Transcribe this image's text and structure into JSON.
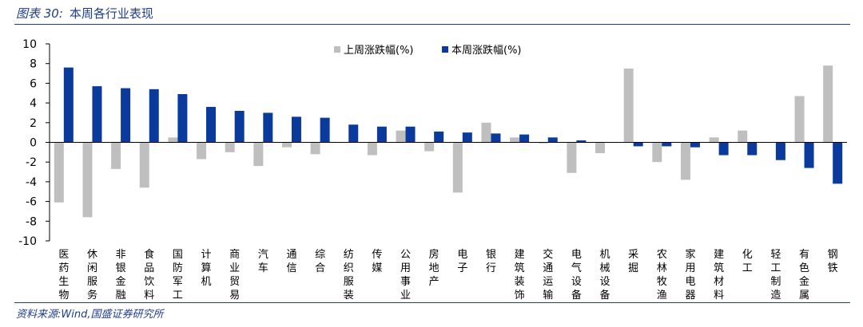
{
  "caption": {
    "label": "图表 30:",
    "title": "本周各行业表现"
  },
  "source": "资料来源:Wind,国盛证券研究所",
  "colors": {
    "last_week": "#bfbfbf",
    "this_week": "#0a3a9b",
    "frame": "#1f3d8a"
  },
  "chart_data": {
    "type": "bar",
    "categories": [
      "医药生物",
      "休闲服务",
      "非银金融",
      "食品饮料",
      "国防军工",
      "计算机",
      "商业贸易",
      "汽车",
      "通信",
      "综合",
      "纺织服装",
      "传媒",
      "公用事业",
      "房地产",
      "电子",
      "银行",
      "建筑装饰",
      "交通运输",
      "电气设备",
      "机械设备",
      "采掘",
      "农林牧渔",
      "家用电器",
      "建筑材料",
      "化工",
      "轻工制造",
      "有色金属",
      "钢铁"
    ],
    "series": [
      {
        "name": "上周涨跌幅(%)",
        "values": [
          -6.1,
          -7.6,
          -2.7,
          -4.6,
          0.5,
          -1.7,
          -1.0,
          -2.4,
          -0.5,
          -1.2,
          0.0,
          -1.3,
          1.2,
          -0.9,
          -5.1,
          2.0,
          0.5,
          -0.1,
          -3.1,
          -1.1,
          7.5,
          -2.0,
          -3.8,
          0.5,
          1.2,
          0.0,
          4.7,
          7.8
        ]
      },
      {
        "name": "本周涨跌幅(%)",
        "values": [
          7.6,
          5.7,
          5.5,
          5.4,
          4.9,
          3.6,
          3.2,
          3.0,
          2.6,
          2.5,
          1.8,
          1.6,
          1.6,
          1.1,
          1.0,
          0.9,
          0.8,
          0.5,
          0.2,
          0.0,
          -0.4,
          -0.4,
          -0.5,
          -1.3,
          -1.3,
          -1.8,
          -2.6,
          -4.2
        ]
      }
    ],
    "yticks": [
      10,
      8,
      6,
      4,
      2,
      0,
      -2,
      -4,
      -6,
      -8,
      -10
    ],
    "ylim": [
      -10,
      10
    ],
    "legend_position": "top-right",
    "grid": false
  }
}
